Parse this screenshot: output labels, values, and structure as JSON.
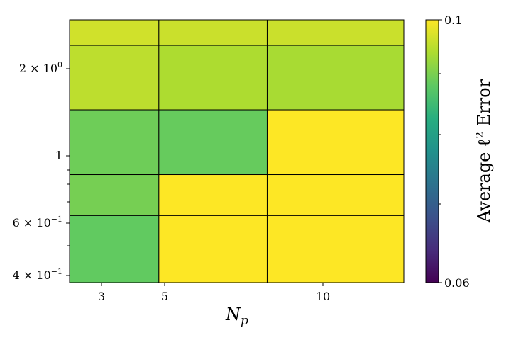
{
  "chart_data": {
    "type": "heatmap",
    "xlabel": "N",
    "xlabel_sub": "p",
    "x_ticks": [
      "3",
      "5",
      "10"
    ],
    "y_ticks": [
      {
        "label": "2 × 10",
        "exp": "0"
      },
      {
        "label": "1",
        "exp": ""
      },
      {
        "label": "6 × 10",
        "exp": "−1"
      },
      {
        "label": "4 × 10",
        "exp": "−1"
      }
    ],
    "y_scale": "log",
    "x_scale": "log",
    "columns": [
      {
        "label": "3",
        "from": 2.3,
        "to": 3.9
      },
      {
        "label": "5",
        "from": 3.9,
        "to": 7.4
      },
      {
        "label": "10",
        "from": 7.4,
        "to": 16.6
      }
    ],
    "rows": [
      {
        "from": 2.8,
        "to": 2.3
      },
      {
        "from": 2.3,
        "to": 1.4
      },
      {
        "from": 1.4,
        "to": 0.85
      },
      {
        "from": 0.85,
        "to": 0.62
      },
      {
        "from": 0.62,
        "to": 0.37
      }
    ],
    "values": [
      [
        0.0972,
        0.0968,
        0.0968
      ],
      [
        0.096,
        0.095,
        0.0947
      ],
      [
        0.091,
        0.0905,
        0.1
      ],
      [
        0.0915,
        0.1,
        0.1
      ],
      [
        0.0902,
        0.1,
        0.1
      ]
    ],
    "colormap": "viridis",
    "colorbar": {
      "label_prefix": "Average ℓ",
      "label_sup": "2",
      "label_suffix": " Error",
      "max_label": "0.1",
      "min_label": "0.06",
      "vmin": 0.06,
      "vmax": 0.1
    },
    "grid": false
  }
}
